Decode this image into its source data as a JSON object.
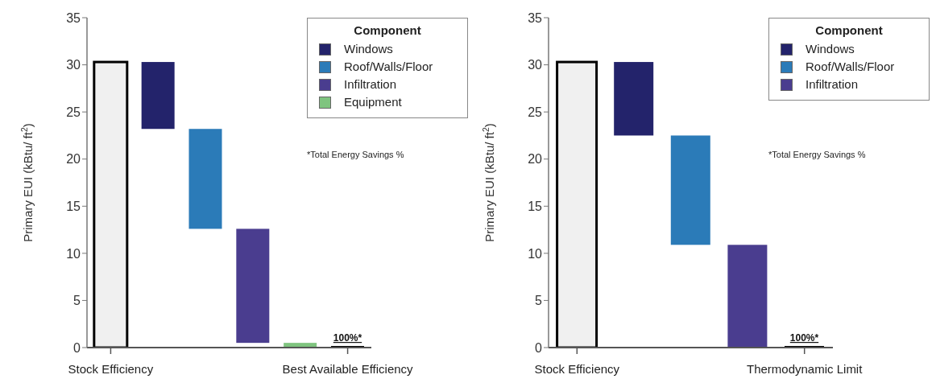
{
  "chart_data": [
    {
      "type": "bar",
      "categories": [
        "Stock Efficiency",
        null,
        null,
        null,
        null,
        "Best Available Efficiency"
      ],
      "ylabel": "Primary EUI (kBtu/ ft$^{2}$)",
      "ylim": [
        0,
        35
      ],
      "yticks": [
        0,
        5,
        10,
        15,
        20,
        25,
        30,
        35
      ],
      "legend": "top right",
      "legend_title": "Component",
      "series": [
        {
          "color": "#f0f0f0",
          "values": [
            30.3,
            null,
            null,
            null,
            null,
            null
          ]
        },
        {
          "name": "Windows",
          "color": "#23236b",
          "values": [
            null,
            7.1,
            null,
            null,
            null,
            null
          ],
          "base": [
            null,
            23.2,
            null,
            null,
            null,
            null
          ]
        },
        {
          "name": "Roof/Walls/Floor",
          "color": "#2b7bb8",
          "values": [
            null,
            null,
            10.6,
            null,
            null,
            null
          ],
          "base": [
            null,
            null,
            12.6,
            null,
            null,
            null
          ]
        },
        {
          "name": "Infiltration",
          "color": "#4a3d8f",
          "values": [
            null,
            null,
            null,
            12.1,
            null,
            null
          ],
          "base": [
            null,
            null,
            null,
            0.5,
            null,
            null
          ]
        },
        {
          "name": "Equipment",
          "color": "#7fc47f",
          "values": [
            null,
            null,
            null,
            null,
            0.5,
            null
          ],
          "base": [
            null,
            null,
            null,
            null,
            0,
            null
          ]
        },
        {
          "color": "#000000",
          "values": [
            null,
            null,
            null,
            null,
            null,
            0
          ]
        }
      ],
      "annotations": [
        "100%*",
        "*Total Energy Savings %"
      ]
    },
    {
      "type": "bar",
      "categories": [
        "Stock Efficiency",
        null,
        null,
        null,
        "Thermodynamic Limit"
      ],
      "ylabel": "Primary EUI (kBtu/ ft$^{2}$)",
      "ylim": [
        0,
        35
      ],
      "yticks": [
        0,
        5,
        10,
        15,
        20,
        25,
        30,
        35
      ],
      "legend": "top right",
      "legend_title": "Component",
      "series": [
        {
          "color": "#f0f0f0",
          "values": [
            30.3,
            null,
            null,
            null,
            null
          ]
        },
        {
          "name": "Windows",
          "color": "#23236b",
          "values": [
            null,
            7.8,
            null,
            null,
            null
          ],
          "base": [
            null,
            22.5,
            null,
            null,
            null
          ]
        },
        {
          "name": "Roof/Walls/Floor",
          "color": "#2b7bb8",
          "values": [
            null,
            null,
            11.6,
            null,
            null
          ],
          "base": [
            null,
            null,
            10.9,
            null,
            null
          ]
        },
        {
          "name": "Infiltration",
          "color": "#4a3d8f",
          "values": [
            null,
            null,
            null,
            10.9,
            null
          ],
          "base": [
            null,
            null,
            null,
            0,
            null
          ]
        },
        {
          "color": "#000000",
          "values": [
            null,
            null,
            null,
            null,
            0
          ]
        }
      ],
      "annotations": [
        "100%*",
        "*Total Energy Savings %"
      ]
    }
  ]
}
